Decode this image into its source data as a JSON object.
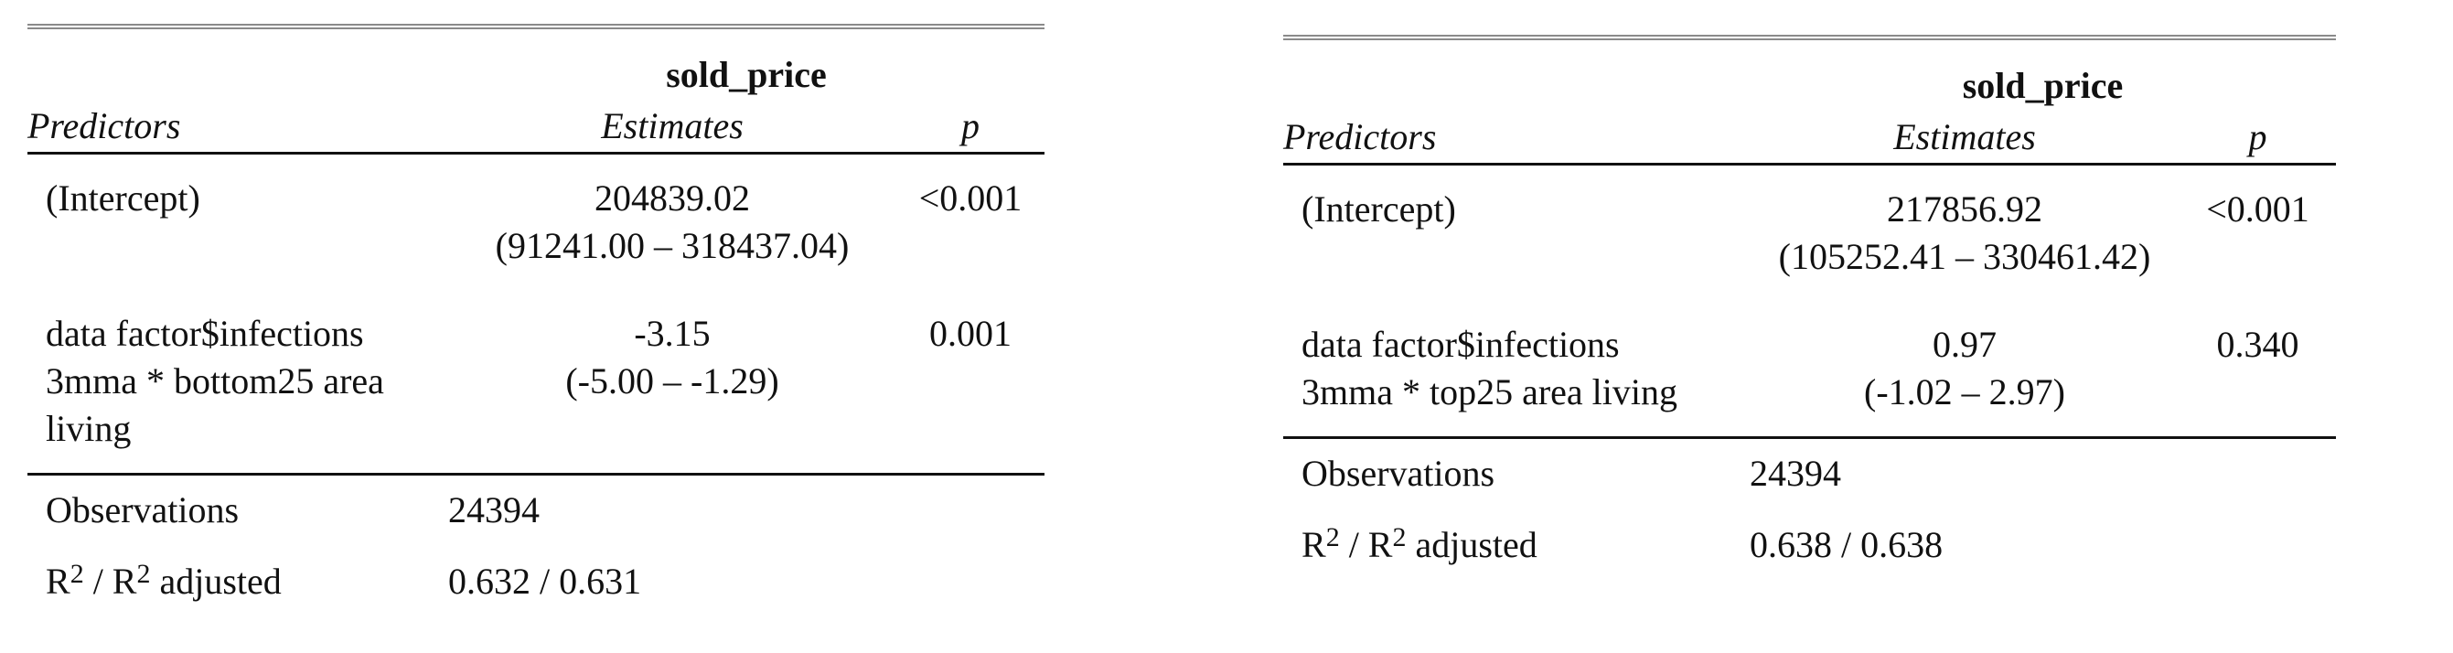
{
  "tables": [
    {
      "dependent_variable": "sold_price",
      "headers": {
        "predictors": "Predictors",
        "estimates": "Estimates",
        "p": "p"
      },
      "rows": [
        {
          "predictor_lines": [
            "(Intercept)"
          ],
          "estimate": "204839.02",
          "ci": "(91241.00 – 318437.04)",
          "p": "<0.001",
          "p_bold": true
        },
        {
          "predictor_lines": [
            "data factor$infections",
            "3mma * bottom25 area",
            "living"
          ],
          "estimate": "-3.15",
          "ci": "(-5.00 – -1.29)",
          "p": "0.001",
          "p_bold": true
        }
      ],
      "observations_label": "Observations",
      "observations": "24394",
      "r2_label_r": "R",
      "r2_label_sup": "2",
      "r2_label_slash": " / R",
      "r2_label_sup2": "2",
      "r2_label_suffix": " adjusted",
      "r2_value": "0.632 / 0.631"
    },
    {
      "dependent_variable": "sold_price",
      "headers": {
        "predictors": "Predictors",
        "estimates": "Estimates",
        "p": "p"
      },
      "rows": [
        {
          "predictor_lines": [
            "(Intercept)"
          ],
          "estimate": "217856.92",
          "ci": "(105252.41 – 330461.42)",
          "p": "<0.001",
          "p_bold": true
        },
        {
          "predictor_lines": [
            "data factor$infections",
            "3mma * top25 area living"
          ],
          "estimate": "0.97",
          "ci": "(-1.02 – 2.97)",
          "p": "0.340",
          "p_bold": false
        }
      ],
      "observations_label": "Observations",
      "observations": "24394",
      "r2_label_r": "R",
      "r2_label_sup": "2",
      "r2_label_slash": " / R",
      "r2_label_sup2": "2",
      "r2_label_suffix": " adjusted",
      "r2_value": "0.638 / 0.638"
    }
  ]
}
